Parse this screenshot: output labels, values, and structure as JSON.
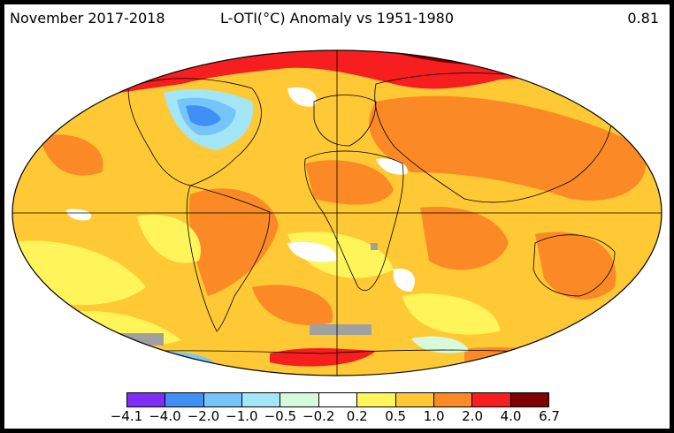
{
  "header": {
    "left": "November 2017-2018",
    "center": "L-OTI(°C) Anomaly vs 1951-1980",
    "right": "0.81"
  },
  "colors": {
    "ocean_base": "#fed233",
    "missing": "#a0a0a0"
  },
  "legend": {
    "bins": [
      "#7f2ff5",
      "#3f8ff5",
      "#76c5f8",
      "#a2e6f8",
      "#d7fadb",
      "#ffffff",
      "#fff55a",
      "#fec934",
      "#fb8a26",
      "#f71e1f",
      "#7f0000"
    ],
    "ticks": [
      "−4.1",
      "−4.0",
      "−2.0",
      "−1.0",
      "−0.5",
      "−0.2",
      "0.2",
      "0.5",
      "1.0",
      "2.0",
      "4.0",
      "6.7"
    ]
  }
}
